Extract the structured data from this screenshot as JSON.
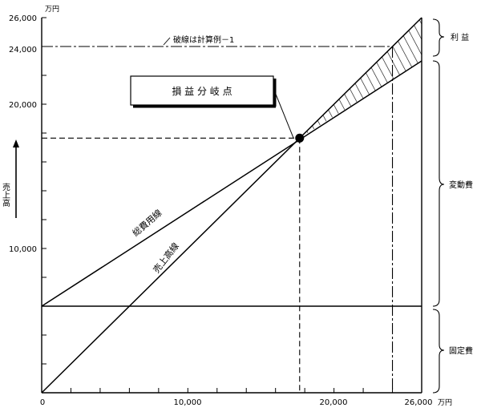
{
  "chart_data": {
    "type": "line",
    "title": "",
    "xlabel": "",
    "ylabel": "売上高",
    "x_unit": "万円",
    "y_unit": "万円",
    "xlim": [
      0,
      26000
    ],
    "ylim": [
      0,
      26000
    ],
    "x_tick_labels": [
      {
        "value": 0,
        "label": "0"
      },
      {
        "value": 10000,
        "label": "10,000"
      },
      {
        "value": 20000,
        "label": "20,000"
      },
      {
        "value": 26000,
        "label": "26,000"
      }
    ],
    "y_tick_labels": [
      {
        "value": 10000,
        "label": "10,000"
      },
      {
        "value": 20000,
        "label": "20,000"
      },
      {
        "value": 24000,
        "label": "24,000"
      },
      {
        "value": 26000,
        "label": "26,000"
      }
    ],
    "series": [
      {
        "name": "売上高線",
        "points": [
          [
            0,
            0
          ],
          [
            26000,
            26000
          ]
        ]
      },
      {
        "name": "総費用線",
        "points": [
          [
            0,
            6000
          ],
          [
            26000,
            23000
          ]
        ]
      }
    ],
    "fixed_cost_line": {
      "y": 6000
    },
    "break_even_point": {
      "x": 17650,
      "y": 17650
    },
    "break_even_label": "損 益 分 岐 点",
    "reference_line": {
      "y": 24000,
      "x": 24000,
      "label": "破線は計算例－1"
    },
    "profit_region": {
      "x_from": 17650,
      "x_to": 26000,
      "hatched": true
    },
    "brackets": [
      {
        "label": "利 益",
        "y_from": 23000,
        "y_to": 26000
      },
      {
        "label": "変動費",
        "y_from": 6000,
        "y_to": 23000
      },
      {
        "label": "固定費",
        "y_from": 0,
        "y_to": 6000
      }
    ]
  }
}
